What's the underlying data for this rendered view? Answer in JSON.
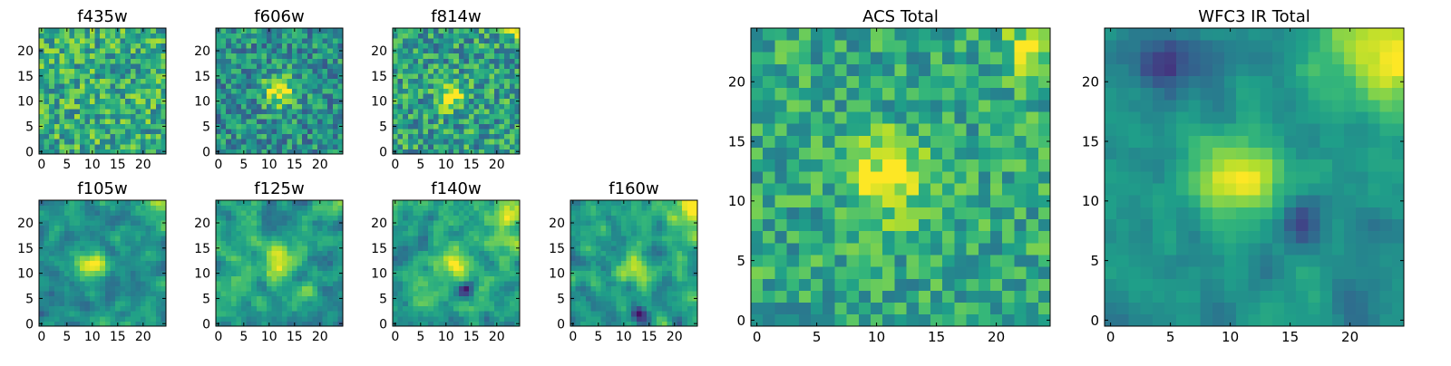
{
  "figure": {
    "colormap": "viridis"
  },
  "chart_data": [
    {
      "type": "heatmap",
      "title": "f435w",
      "xlim": [
        0,
        24
      ],
      "ylim": [
        0,
        24
      ],
      "xticks": [
        "0",
        "5",
        "10",
        "15",
        "20"
      ],
      "yticks": [
        "0",
        "5",
        "10",
        "15",
        "20"
      ],
      "grid_size": 25,
      "seed": 11,
      "noise": 0.26,
      "smooth": 0,
      "base": 0.62,
      "blobs": []
    },
    {
      "type": "heatmap",
      "title": "f606w",
      "xlim": [
        0,
        24
      ],
      "ylim": [
        0,
        24
      ],
      "xticks": [
        "0",
        "5",
        "10",
        "15",
        "20"
      ],
      "yticks": [
        "0",
        "5",
        "10",
        "15",
        "20"
      ],
      "grid_size": 25,
      "seed": 23,
      "noise": 0.24,
      "smooth": 0,
      "base": 0.5,
      "blobs": [
        {
          "x": 12,
          "y": 12,
          "sigma": 2.2,
          "amp": 0.5
        }
      ]
    },
    {
      "type": "heatmap",
      "title": "f814w",
      "xlim": [
        0,
        24
      ],
      "ylim": [
        0,
        24
      ],
      "xticks": [
        "0",
        "5",
        "10",
        "15",
        "20"
      ],
      "yticks": [
        "0",
        "5",
        "10",
        "15",
        "20"
      ],
      "grid_size": 25,
      "seed": 37,
      "noise": 0.26,
      "smooth": 0,
      "base": 0.56,
      "blobs": [
        {
          "x": 11,
          "y": 11,
          "sigma": 1.8,
          "amp": 0.45
        },
        {
          "x": 24,
          "y": 24,
          "sigma": 1.5,
          "amp": 0.3
        }
      ]
    },
    {
      "type": "heatmap",
      "title": "f105w",
      "xlim": [
        0,
        24
      ],
      "ylim": [
        0,
        24
      ],
      "xticks": [
        "0",
        "5",
        "10",
        "15",
        "20"
      ],
      "yticks": [
        "0",
        "5",
        "10",
        "15",
        "20"
      ],
      "grid_size": 25,
      "seed": 41,
      "noise": 0.22,
      "smooth": 1,
      "base": 0.5,
      "blobs": [
        {
          "x": 10,
          "y": 12,
          "sigma": 2.0,
          "amp": 0.5
        },
        {
          "x": 24,
          "y": 24,
          "sigma": 2.0,
          "amp": 0.35
        }
      ]
    },
    {
      "type": "heatmap",
      "title": "f125w",
      "xlim": [
        0,
        24
      ],
      "ylim": [
        0,
        24
      ],
      "xticks": [
        "0",
        "5",
        "10",
        "15",
        "20"
      ],
      "yticks": [
        "0",
        "5",
        "10",
        "15",
        "20"
      ],
      "grid_size": 25,
      "seed": 53,
      "noise": 0.24,
      "smooth": 1,
      "base": 0.56,
      "blobs": [
        {
          "x": 12,
          "y": 12,
          "sigma": 2.2,
          "amp": 0.4
        },
        {
          "x": 24,
          "y": 24,
          "sigma": 2.2,
          "amp": 0.35
        }
      ]
    },
    {
      "type": "heatmap",
      "title": "f140w",
      "xlim": [
        0,
        24
      ],
      "ylim": [
        0,
        24
      ],
      "xticks": [
        "0",
        "5",
        "10",
        "15",
        "20"
      ],
      "yticks": [
        "0",
        "5",
        "10",
        "15",
        "20"
      ],
      "grid_size": 25,
      "seed": 67,
      "noise": 0.24,
      "smooth": 1,
      "base": 0.58,
      "blobs": [
        {
          "x": 11,
          "y": 12,
          "sigma": 2.4,
          "amp": 0.35
        },
        {
          "x": 22,
          "y": 17,
          "sigma": 2.5,
          "amp": 0.3
        },
        {
          "x": 24,
          "y": 24,
          "sigma": 2.5,
          "amp": 0.35
        },
        {
          "x": 14,
          "y": 7,
          "sigma": 1.0,
          "amp": -0.5
        }
      ]
    },
    {
      "type": "heatmap",
      "title": "f160w",
      "xlim": [
        0,
        24
      ],
      "ylim": [
        0,
        24
      ],
      "xticks": [
        "0",
        "5",
        "10",
        "15",
        "20"
      ],
      "yticks": [
        "0",
        "5",
        "10",
        "15",
        "20"
      ],
      "grid_size": 25,
      "seed": 79,
      "noise": 0.24,
      "smooth": 1,
      "base": 0.56,
      "blobs": [
        {
          "x": 12,
          "y": 11,
          "sigma": 2.2,
          "amp": 0.35
        },
        {
          "x": 24,
          "y": 22,
          "sigma": 2.8,
          "amp": 0.45
        },
        {
          "x": 13,
          "y": 2,
          "sigma": 1.0,
          "amp": -0.5
        }
      ]
    },
    {
      "type": "heatmap",
      "title": "ACS Total",
      "xlim": [
        0,
        24
      ],
      "ylim": [
        0,
        24
      ],
      "xticks": [
        "0",
        "5",
        "10",
        "15",
        "20"
      ],
      "yticks": [
        "0",
        "5",
        "10",
        "15",
        "20"
      ],
      "grid_size": 25,
      "seed": 97,
      "noise": 0.2,
      "smooth": 0,
      "base": 0.6,
      "blobs": [
        {
          "x": 11,
          "y": 12,
          "sigma": 2.3,
          "amp": 0.42
        },
        {
          "x": 23,
          "y": 23,
          "sigma": 1.8,
          "amp": 0.3
        }
      ]
    },
    {
      "type": "heatmap",
      "title": "WFC3 IR Total",
      "xlim": [
        0,
        24
      ],
      "ylim": [
        0,
        24
      ],
      "xticks": [
        "0",
        "5",
        "10",
        "15",
        "20"
      ],
      "yticks": [
        "0",
        "5",
        "10",
        "15",
        "20"
      ],
      "grid_size": 25,
      "seed": 131,
      "noise": 0.14,
      "smooth": 1,
      "base": 0.5,
      "blobs": [
        {
          "x": 11,
          "y": 12,
          "sigma": 2.5,
          "amp": 0.5
        },
        {
          "x": 23,
          "y": 22,
          "sigma": 3.5,
          "amp": 0.5
        },
        {
          "x": 5,
          "y": 22,
          "sigma": 2.2,
          "amp": -0.35
        },
        {
          "x": 16,
          "y": 8,
          "sigma": 1.2,
          "amp": -0.3
        }
      ]
    }
  ]
}
